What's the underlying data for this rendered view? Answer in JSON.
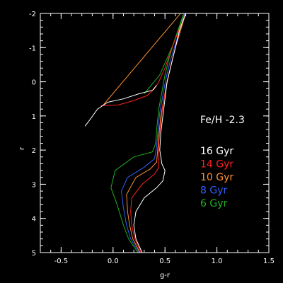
{
  "chart_data": {
    "type": "line",
    "title": "",
    "xlabel": "g-r",
    "ylabel": "r",
    "xlim": [
      -0.7,
      1.5
    ],
    "ylim": [
      5,
      -2
    ],
    "y_inverted": true,
    "x_ticks": [
      "-0.5",
      "0.0",
      "0.5",
      "1.0",
      "1.5"
    ],
    "y_ticks": [
      "-2",
      "-1",
      "0",
      "1",
      "2",
      "3",
      "4",
      "5"
    ],
    "background": "#000000",
    "foreground": "#ffffff",
    "grid": false,
    "annotation": "Fe/H -2.3",
    "legend_position": "right",
    "series": [
      {
        "name": "16 Gyr",
        "color": "#ffffff",
        "points": [
          [
            0.28,
            5.0
          ],
          [
            0.22,
            4.6
          ],
          [
            0.2,
            4.2
          ],
          [
            0.22,
            3.8
          ],
          [
            0.3,
            3.4
          ],
          [
            0.42,
            3.1
          ],
          [
            0.48,
            2.9
          ],
          [
            0.5,
            2.6
          ],
          [
            0.47,
            2.4
          ],
          [
            0.45,
            2.0
          ],
          [
            0.46,
            1.5
          ],
          [
            0.48,
            1.0
          ],
          [
            0.5,
            0.5
          ],
          [
            0.52,
            0.0
          ],
          [
            0.56,
            -0.5
          ],
          [
            0.6,
            -1.0
          ],
          [
            0.64,
            -1.5
          ],
          [
            0.7,
            -2.0
          ]
        ],
        "hb_points": [
          [
            -0.27,
            1.3
          ],
          [
            -0.22,
            1.1
          ],
          [
            -0.15,
            0.8
          ],
          [
            -0.05,
            0.6
          ],
          [
            0.1,
            0.5
          ],
          [
            0.25,
            0.35
          ],
          [
            0.38,
            0.25
          ],
          [
            0.42,
            0.1
          ]
        ]
      },
      {
        "name": "14 Gyr",
        "color": "#ff2020",
        "points": [
          [
            0.27,
            5.0
          ],
          [
            0.21,
            4.6
          ],
          [
            0.18,
            4.2
          ],
          [
            0.17,
            3.8
          ],
          [
            0.18,
            3.4
          ],
          [
            0.28,
            3.0
          ],
          [
            0.4,
            2.7
          ],
          [
            0.44,
            2.5
          ],
          [
            0.44,
            2.2
          ],
          [
            0.44,
            1.8
          ],
          [
            0.46,
            1.2
          ],
          [
            0.48,
            0.7
          ],
          [
            0.51,
            0.2
          ],
          [
            0.55,
            -0.4
          ],
          [
            0.6,
            -1.0
          ],
          [
            0.64,
            -1.5
          ],
          [
            0.7,
            -2.0
          ]
        ],
        "hb_points": [
          [
            -0.12,
            0.7
          ],
          [
            0.05,
            0.68
          ],
          [
            0.2,
            0.55
          ],
          [
            0.33,
            0.4
          ],
          [
            0.4,
            0.2
          ],
          [
            0.44,
            0.0
          ],
          [
            0.5,
            -0.4
          ],
          [
            0.58,
            -1.1
          ],
          [
            0.7,
            -2.0
          ]
        ]
      },
      {
        "name": "10 Gyr",
        "color": "#ff9030",
        "points": [
          [
            0.26,
            5.0
          ],
          [
            0.19,
            4.6
          ],
          [
            0.16,
            4.2
          ],
          [
            0.14,
            3.8
          ],
          [
            0.13,
            3.3
          ],
          [
            0.22,
            2.8
          ],
          [
            0.36,
            2.55
          ],
          [
            0.42,
            2.35
          ],
          [
            0.43,
            2.0
          ],
          [
            0.44,
            1.6
          ],
          [
            0.46,
            1.0
          ],
          [
            0.49,
            0.5
          ],
          [
            0.52,
            0.0
          ],
          [
            0.56,
            -0.5
          ],
          [
            0.6,
            -1.0
          ],
          [
            0.65,
            -1.5
          ],
          [
            0.7,
            -2.0
          ]
        ],
        "hb_points": [
          [
            -0.1,
            0.7
          ],
          [
            0.65,
            -2.0
          ]
        ]
      },
      {
        "name": "8 Gyr",
        "color": "#3060ff",
        "points": [
          [
            0.25,
            5.0
          ],
          [
            0.17,
            4.6
          ],
          [
            0.13,
            4.2
          ],
          [
            0.1,
            3.7
          ],
          [
            0.08,
            3.2
          ],
          [
            0.14,
            2.8
          ],
          [
            0.3,
            2.5
          ],
          [
            0.4,
            2.25
          ],
          [
            0.42,
            1.9
          ],
          [
            0.43,
            1.5
          ],
          [
            0.45,
            0.9
          ],
          [
            0.48,
            0.4
          ],
          [
            0.51,
            -0.1
          ],
          [
            0.55,
            -0.6
          ],
          [
            0.6,
            -1.1
          ],
          [
            0.65,
            -1.6
          ],
          [
            0.69,
            -2.0
          ]
        ],
        "hb_points": []
      },
      {
        "name": "6 Gyr",
        "color": "#20b020",
        "points": [
          [
            0.24,
            5.0
          ],
          [
            0.15,
            4.6
          ],
          [
            0.1,
            4.2
          ],
          [
            0.04,
            3.6
          ],
          [
            -0.02,
            3.1
          ],
          [
            0.02,
            2.6
          ],
          [
            0.2,
            2.2
          ],
          [
            0.38,
            2.05
          ],
          [
            0.41,
            1.8
          ],
          [
            0.42,
            1.4
          ],
          [
            0.44,
            0.8
          ],
          [
            0.47,
            0.3
          ],
          [
            0.5,
            -0.2
          ],
          [
            0.54,
            -0.7
          ],
          [
            0.59,
            -1.2
          ],
          [
            0.64,
            -1.6
          ],
          [
            0.69,
            -2.0
          ]
        ],
        "hb_points": [
          [
            0.3,
            0.35
          ],
          [
            0.45,
            -0.2
          ],
          [
            0.58,
            -1.1
          ],
          [
            0.68,
            -2.0
          ]
        ]
      }
    ]
  }
}
